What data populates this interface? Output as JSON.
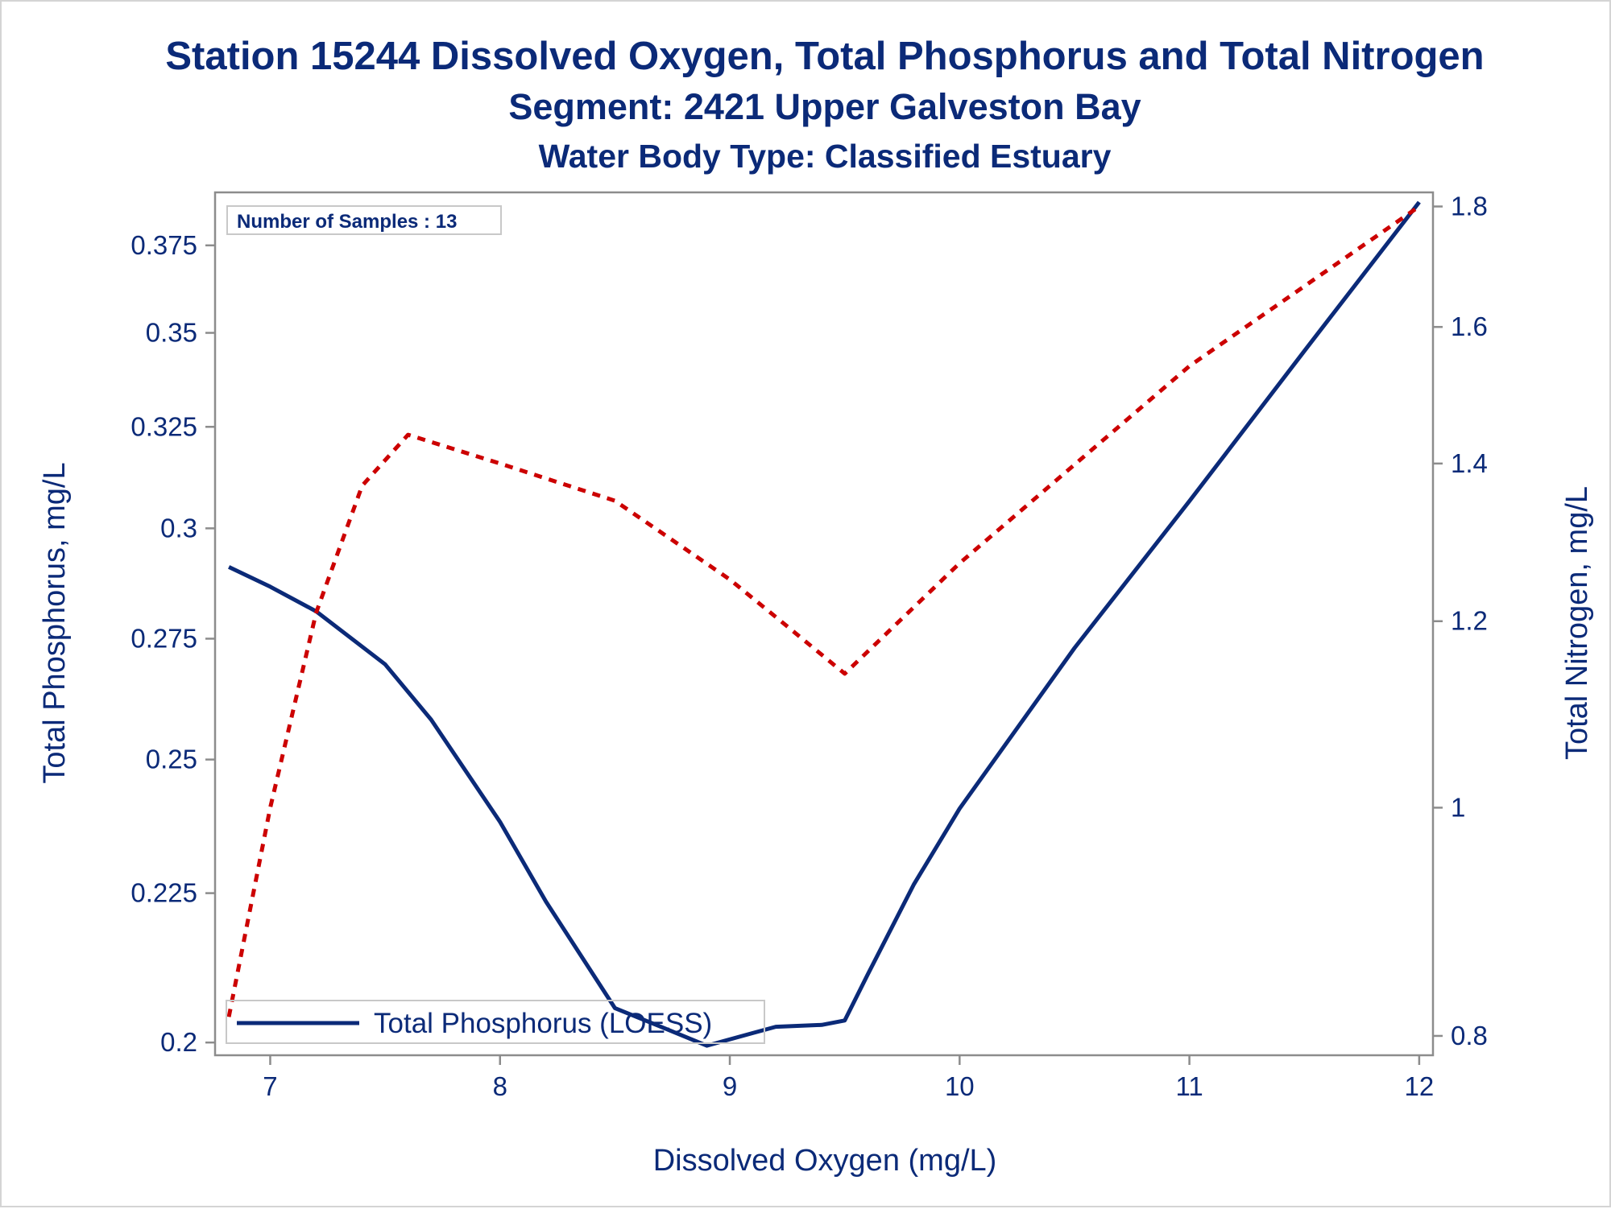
{
  "chart_data": {
    "type": "line",
    "title": "Station 15244  Dissolved Oxygen, Total Phosphorus and Total Nitrogen",
    "subtitle": "Segment: 2421  Upper Galveston Bay",
    "subtitle2": "Water Body Type: Classified Estuary",
    "annotation": "Number of Samples : 13",
    "xlabel": "Dissolved Oxygen (mg/L)",
    "ylabel_left": "Total Phosphorus, mg/L",
    "ylabel_right": "Total Nitrogen, mg/L",
    "xlim": [
      6.76,
      12.06
    ],
    "ylim_left": [
      0.198,
      0.391
    ],
    "ylim_right": [
      0.785,
      1.825
    ],
    "scale": "log",
    "x_ticks": [
      "7",
      "8",
      "9",
      "10",
      "11",
      "12"
    ],
    "y_left_ticks": [
      "0.2",
      "0.225",
      "0.25",
      "0.275",
      "0.3",
      "0.325",
      "0.35",
      "0.375"
    ],
    "y_right_ticks": [
      "0.8",
      "1",
      "1.2",
      "1.4",
      "1.6",
      "1.8"
    ],
    "grid": false,
    "legend_position": "bottom-left",
    "series": [
      {
        "name": "Total Phosphorus (LOESS)",
        "axis": "left",
        "color": "#0b2a78",
        "style": "solid",
        "x": [
          6.82,
          7.0,
          7.2,
          7.5,
          7.7,
          8.0,
          8.2,
          8.5,
          8.7,
          8.9,
          9.1,
          9.2,
          9.4,
          9.5,
          9.6,
          9.8,
          10.0,
          10.5,
          11.0,
          11.5,
          12.0
        ],
        "y": [
          0.291,
          0.2865,
          0.281,
          0.2695,
          0.258,
          0.238,
          0.2235,
          0.2055,
          0.2025,
          0.1995,
          0.2015,
          0.2025,
          0.2028,
          0.2035,
          0.211,
          0.2265,
          0.2405,
          0.273,
          0.3065,
          0.345,
          0.388
        ]
      },
      {
        "name": "",
        "axis": "right",
        "color": "#cc0000",
        "style": "dotted",
        "x": [
          6.82,
          7.0,
          7.2,
          7.4,
          7.6,
          8.0,
          8.5,
          9.0,
          9.2,
          9.5,
          10.0,
          11.0,
          12.0
        ],
        "y": [
          0.815,
          1.0,
          1.21,
          1.37,
          1.44,
          1.4,
          1.35,
          1.25,
          1.205,
          1.14,
          1.27,
          1.54,
          1.8
        ]
      }
    ]
  }
}
